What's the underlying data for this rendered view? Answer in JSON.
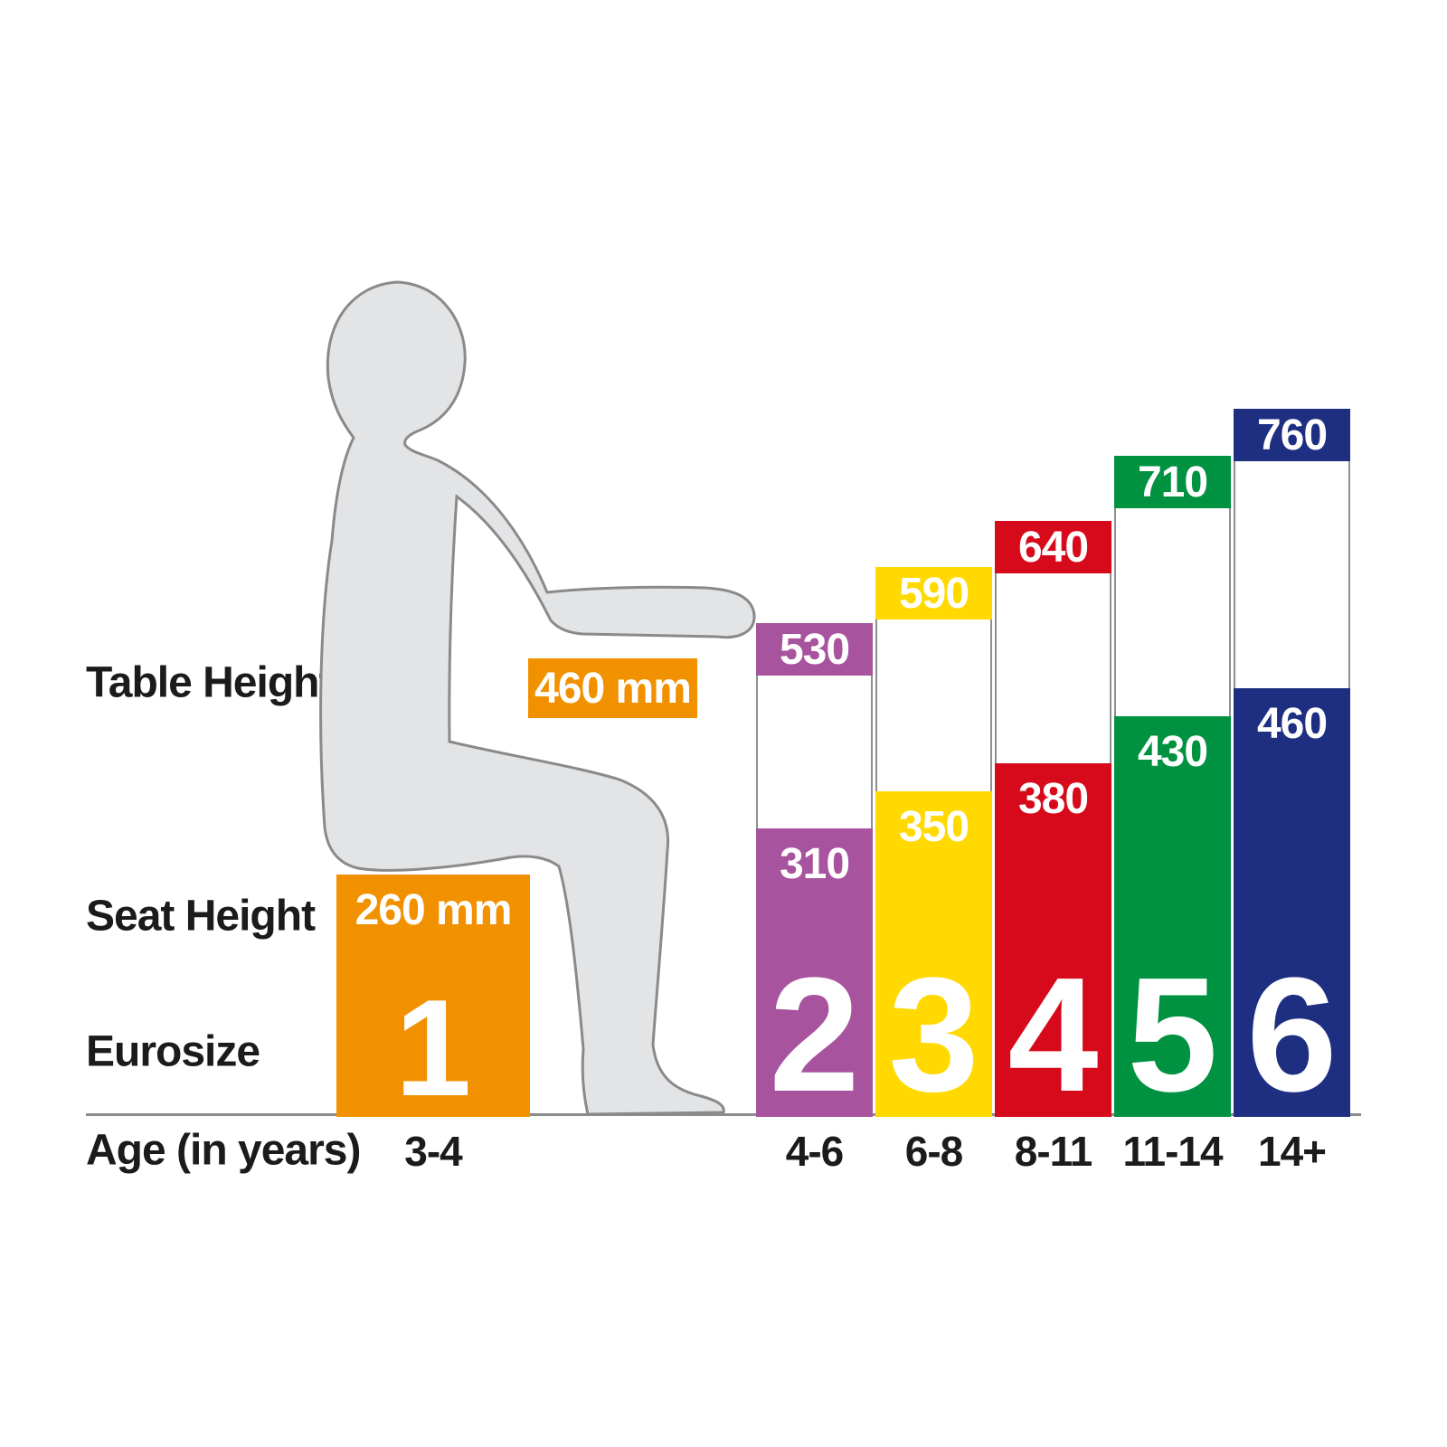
{
  "labels": {
    "table_height": "Table Height",
    "seat_height": "Seat Height",
    "eurosize": "Eurosize",
    "age": "Age (in years)"
  },
  "chart_data": {
    "type": "bar",
    "categories": [
      "1",
      "2",
      "3",
      "4",
      "5",
      "6"
    ],
    "age_ranges": [
      "3-4",
      "4-6",
      "6-8",
      "8-11",
      "11-14",
      "14+"
    ],
    "series": [
      {
        "name": "Table Height",
        "unit": "mm",
        "values": [
          460,
          530,
          590,
          640,
          710,
          760
        ],
        "display": [
          "460 mm",
          "530",
          "590",
          "640",
          "710",
          "760"
        ]
      },
      {
        "name": "Seat Height",
        "unit": "mm",
        "values": [
          260,
          310,
          350,
          380,
          430,
          460
        ],
        "display": [
          "260 mm",
          "310",
          "350",
          "380",
          "430",
          "460"
        ]
      }
    ],
    "colors": [
      "#F29100",
      "#A8539E",
      "#FFD900",
      "#D70A1B",
      "#009240",
      "#1E2F82"
    ],
    "xlabel": "Age (in years)",
    "ylim": [
      0,
      800
    ],
    "grid": false,
    "legend_position": "left-row-labels",
    "layout": {
      "baseline_color": "#8c8c8c",
      "gap_outline_color": "#8f8f8f",
      "value_text_color": "#ffffff",
      "label_text_color": "#1b1b1b",
      "silhouette_fill": "#E3E4E6",
      "silhouette_outline": "#8A8A8B"
    }
  }
}
